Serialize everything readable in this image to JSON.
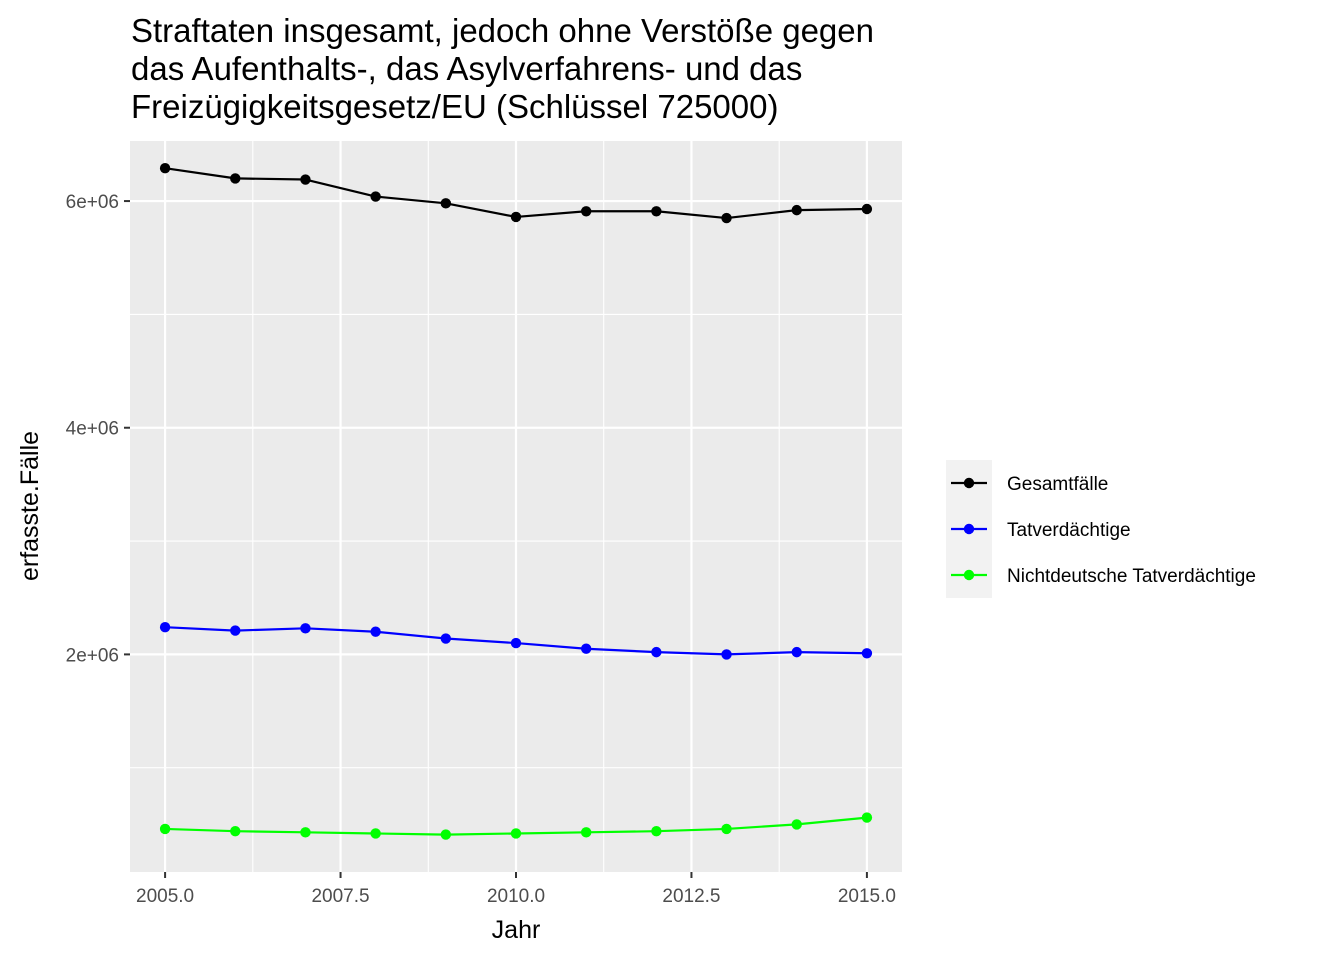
{
  "chart_data": {
    "type": "line",
    "title_lines": [
      "Straftaten insgesamt, jedoch ohne Verstöße gegen",
      "das Aufenthalts-, das Asylverfahrens- und das",
      "Freizügigkeitsgesetz/EU (Schlüssel 725000)"
    ],
    "xlabel": "Jahr",
    "ylabel": "erfasste.Fälle",
    "xlim": [
      2004.5,
      2015.5
    ],
    "ylim": [
      80000,
      6530000
    ],
    "x_ticks": [
      2005,
      2007.5,
      2010,
      2012.5,
      2015
    ],
    "x_tick_labels": [
      "2005.0",
      "2007.5",
      "2010.0",
      "2012.5",
      "2015.0"
    ],
    "y_ticks": [
      2000000,
      4000000,
      6000000
    ],
    "y_tick_labels": [
      "2e+06",
      "4e+06",
      "6e+06"
    ],
    "y_minor_ticks": [
      1000000,
      3000000,
      5000000
    ],
    "grid": true,
    "legend_position": "right",
    "x": [
      2005,
      2006,
      2007,
      2008,
      2009,
      2010,
      2011,
      2012,
      2013,
      2014,
      2015
    ],
    "series": [
      {
        "name": "Gesamtfälle",
        "color": "#000000",
        "values": [
          6290000,
          6200000,
          6190000,
          6040000,
          5980000,
          5860000,
          5910000,
          5910000,
          5850000,
          5920000,
          5930000
        ]
      },
      {
        "name": "Tatverdächtige",
        "color": "#0000ff",
        "values": [
          2240000,
          2210000,
          2230000,
          2200000,
          2140000,
          2100000,
          2050000,
          2020000,
          2000000,
          2020000,
          2010000
        ]
      },
      {
        "name": "Nichtdeutsche Tatverdächtige",
        "color": "#00ff00",
        "values": [
          460000,
          440000,
          430000,
          420000,
          410000,
          420000,
          430000,
          440000,
          460000,
          500000,
          560000
        ]
      }
    ]
  }
}
